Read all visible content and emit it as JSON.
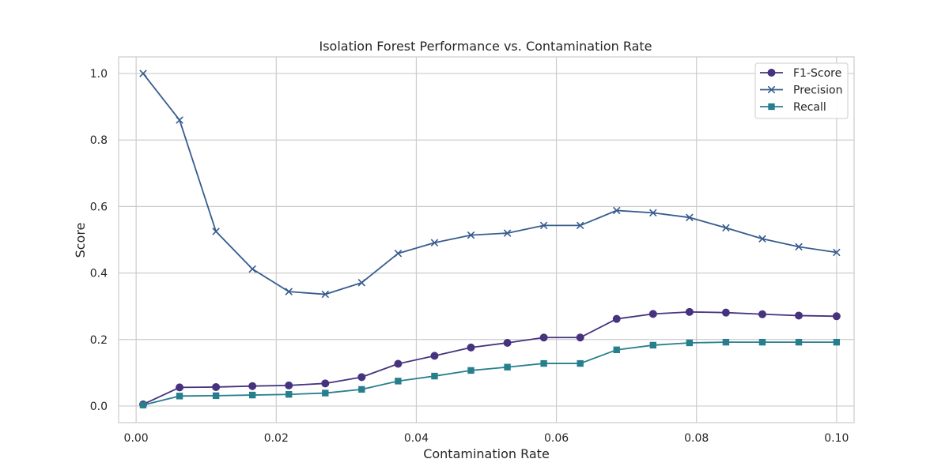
{
  "chart_data": {
    "type": "line",
    "title": "Isolation Forest Performance vs. Contamination Rate",
    "xlabel": "Contamination Rate",
    "ylabel": "Score",
    "xlim": [
      -0.0025,
      0.1025
    ],
    "ylim": [
      -0.05,
      1.05
    ],
    "xticks": [
      0.0,
      0.02,
      0.04,
      0.06,
      0.08,
      0.1
    ],
    "xtick_labels": [
      "0.00",
      "0.02",
      "0.04",
      "0.06",
      "0.08",
      "0.10"
    ],
    "yticks": [
      0.0,
      0.2,
      0.4,
      0.6,
      0.8,
      1.0
    ],
    "ytick_labels": [
      "0.0",
      "0.2",
      "0.4",
      "0.6",
      "0.8",
      "1.0"
    ],
    "grid": true,
    "legend_position": "top-right",
    "x": [
      0.001,
      0.0062,
      0.0114,
      0.0166,
      0.0218,
      0.027,
      0.0322,
      0.0374,
      0.0426,
      0.0478,
      0.053,
      0.0582,
      0.0634,
      0.0686,
      0.0738,
      0.079,
      0.0842,
      0.0894,
      0.0946,
      0.1
    ],
    "series": [
      {
        "name": "F1-Score",
        "marker": "circle",
        "color": "#46327e",
        "values": [
          0.005,
          0.056,
          0.057,
          0.06,
          0.062,
          0.068,
          0.087,
          0.127,
          0.151,
          0.176,
          0.19,
          0.206,
          0.206,
          0.262,
          0.277,
          0.283,
          0.281,
          0.276,
          0.272,
          0.27
        ]
      },
      {
        "name": "Precision",
        "marker": "x",
        "color": "#365c8d",
        "values": [
          1.0,
          0.86,
          0.525,
          0.412,
          0.344,
          0.336,
          0.371,
          0.459,
          0.491,
          0.514,
          0.52,
          0.543,
          0.543,
          0.588,
          0.581,
          0.567,
          0.536,
          0.503,
          0.479,
          0.462
        ]
      },
      {
        "name": "Recall",
        "marker": "square",
        "color": "#277f8e",
        "values": [
          0.003,
          0.03,
          0.031,
          0.033,
          0.035,
          0.039,
          0.05,
          0.075,
          0.09,
          0.107,
          0.117,
          0.128,
          0.128,
          0.169,
          0.183,
          0.19,
          0.192,
          0.192,
          0.192,
          0.192
        ]
      }
    ]
  }
}
